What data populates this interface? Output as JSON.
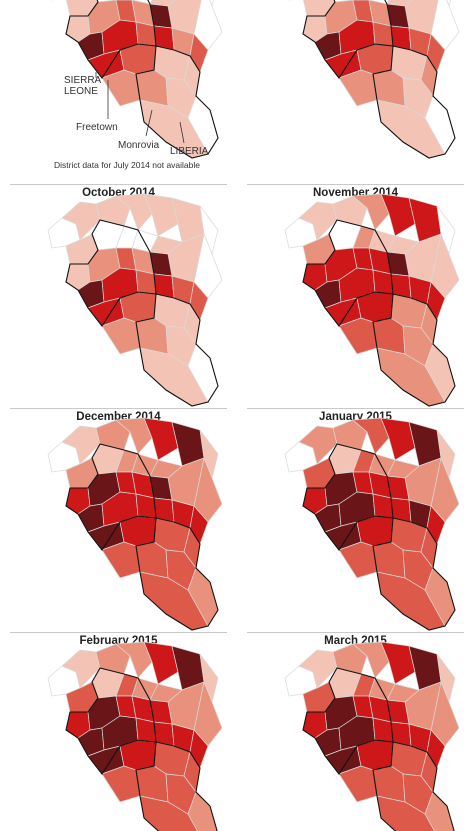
{
  "annotations": {
    "country_sierra_leone_line1": "SIERRA",
    "country_sierra_leone_line2": "LEONE",
    "city_freetown": "Freetown",
    "city_monrovia": "Monrovia",
    "country_liberia": "LIBERIA",
    "note": "District data for July 2014 not available"
  },
  "colors": {
    "none": "#ffffff",
    "level1": "#f3c4b6",
    "level2": "#e8917c",
    "level3": "#dd5a4a",
    "level4": "#cd1719",
    "level5": "#6a1518",
    "border": "#111111",
    "district_line": "#d9d9d9"
  },
  "panels": [
    {
      "id": "top-left",
      "title": "",
      "levels": [
        0,
        1,
        1,
        1,
        1,
        2,
        0,
        0,
        1,
        1,
        0,
        0,
        0,
        1,
        1,
        2,
        3,
        2,
        5,
        5,
        4,
        3,
        4,
        2,
        3,
        4,
        3,
        1,
        1,
        2,
        2,
        1,
        1,
        0
      ]
    },
    {
      "id": "top-right",
      "title": "",
      "levels": [
        0,
        1,
        1,
        1,
        1,
        1,
        0,
        0,
        1,
        1,
        0,
        0,
        0,
        1,
        1,
        2,
        3,
        2,
        5,
        5,
        4,
        3,
        4,
        3,
        3,
        4,
        3,
        1,
        2,
        2,
        2,
        1,
        1,
        0
      ]
    },
    {
      "id": "oct-2014",
      "title": "October 2014",
      "levels": [
        0,
        1,
        1,
        1,
        1,
        1,
        0,
        0,
        1,
        1,
        0,
        0,
        0,
        1,
        1,
        2,
        3,
        2,
        5,
        5,
        4,
        3,
        4,
        3,
        3,
        4,
        3,
        1,
        1,
        2,
        2,
        1,
        1,
        0
      ]
    },
    {
      "id": "nov-2014",
      "title": "November 2014",
      "levels": [
        0,
        1,
        1,
        2,
        4,
        4,
        0,
        1,
        1,
        1,
        1,
        2,
        0,
        2,
        4,
        4,
        4,
        4,
        5,
        5,
        4,
        4,
        4,
        4,
        4,
        4,
        4,
        2,
        2,
        3,
        3,
        2,
        2,
        1
      ]
    },
    {
      "id": "dec-2014",
      "title": "December 2014",
      "levels": [
        0,
        1,
        2,
        2,
        4,
        5,
        1,
        2,
        2,
        2,
        2,
        2,
        1,
        2,
        4,
        5,
        4,
        4,
        5,
        5,
        4,
        4,
        4,
        4,
        4,
        5,
        4,
        3,
        3,
        3,
        3,
        3,
        3,
        2
      ]
    },
    {
      "id": "jan-2015",
      "title": "January 2015",
      "levels": [
        0,
        2,
        2,
        3,
        4,
        5,
        1,
        2,
        2,
        2,
        2,
        3,
        1,
        3,
        4,
        5,
        4,
        4,
        4,
        5,
        5,
        4,
        4,
        5,
        4,
        5,
        4,
        3,
        3,
        3,
        3,
        3,
        3,
        2
      ]
    },
    {
      "id": "feb-2015",
      "title": "February 2015",
      "levels": [
        0,
        1,
        2,
        2,
        4,
        5,
        1,
        2,
        2,
        2,
        2,
        3,
        1,
        3,
        4,
        5,
        4,
        4,
        4,
        5,
        5,
        4,
        4,
        4,
        4,
        5,
        4,
        3,
        3,
        3,
        3,
        3,
        3,
        2
      ]
    },
    {
      "id": "mar-2015",
      "title": "March 2015",
      "levels": [
        0,
        1,
        2,
        2,
        4,
        5,
        1,
        2,
        2,
        2,
        2,
        3,
        1,
        3,
        4,
        5,
        4,
        4,
        4,
        5,
        5,
        4,
        4,
        4,
        4,
        5,
        4,
        3,
        3,
        3,
        3,
        3,
        3,
        2
      ]
    }
  ]
}
